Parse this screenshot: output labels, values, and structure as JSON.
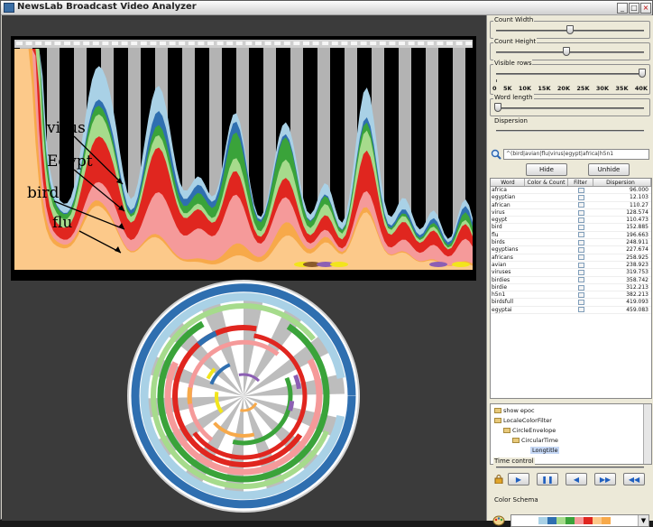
{
  "window": {
    "title": "NewsLab Broadcast Video Analyzer",
    "btn_min": "_",
    "btn_max": "□",
    "btn_close": "×"
  },
  "annotations": {
    "virus": "virus",
    "egypt": "Egypt",
    "bird": "bird",
    "flu": "flu"
  },
  "colors": {
    "light_blue": "#a9d1e6",
    "dark_blue": "#2f6fb0",
    "green": "#3aa33a",
    "light_green": "#a6db8c",
    "red": "#e0261f",
    "pink": "#f59a9a",
    "orange": "#f7a94a",
    "peach": "#fcc98a",
    "yellow": "#f2e51c",
    "purple": "#8c5fb3",
    "brown": "#8a5a2b",
    "gray": "#b3b3b3"
  },
  "right_panel": {
    "count_width_label": "Count Width",
    "count_height_label": "Count Height",
    "visible_rows_label": "Visible rows",
    "visible_rows_ticks": [
      "0",
      "5K",
      "10K",
      "15K",
      "20K",
      "25K",
      "30K",
      "35K",
      "40K"
    ],
    "word_length_label": "Word length",
    "dispersion_label": "Dispersion",
    "search_value": "^(bird|avian|flu|virus|egypt|africa|h5n1",
    "hide_label": "Hide",
    "unhide_label": "Unhide",
    "table_headers": [
      "Word",
      "Color & Count",
      "Filter",
      "Dispersion"
    ],
    "rows": [
      {
        "word": "africa",
        "disp": "96.000"
      },
      {
        "word": "egyptian",
        "disp": "12.103"
      },
      {
        "word": "african",
        "disp": "110.27"
      },
      {
        "word": "virus",
        "disp": "128.574"
      },
      {
        "word": "egypt",
        "disp": "110.473"
      },
      {
        "word": "bird",
        "disp": "152.885"
      },
      {
        "word": "flu",
        "disp": "196.663"
      },
      {
        "word": "birds",
        "disp": "248.911"
      },
      {
        "word": "egyptians",
        "disp": "227.674"
      },
      {
        "word": "africans",
        "disp": "258.925"
      },
      {
        "word": "avian",
        "disp": "238.923"
      },
      {
        "word": "viruses",
        "disp": "319.753"
      },
      {
        "word": "birdies",
        "disp": "358.742"
      },
      {
        "word": "birdie",
        "disp": "312.213"
      },
      {
        "word": "h5n1",
        "disp": "382.213"
      },
      {
        "word": "birdsfull",
        "disp": "419.093"
      },
      {
        "word": "egyptai",
        "disp": "459.083"
      }
    ],
    "tree": [
      "show epoc",
      "LocaleColorFilter",
      "CircleEnvelope",
      "CircularTime",
      "Longtitle"
    ],
    "time_control_label": "Time control",
    "play_buttons": [
      "play",
      "pause",
      "step-back",
      "step-forward",
      "rewind"
    ],
    "color_schema_label": "Color Schema"
  }
}
